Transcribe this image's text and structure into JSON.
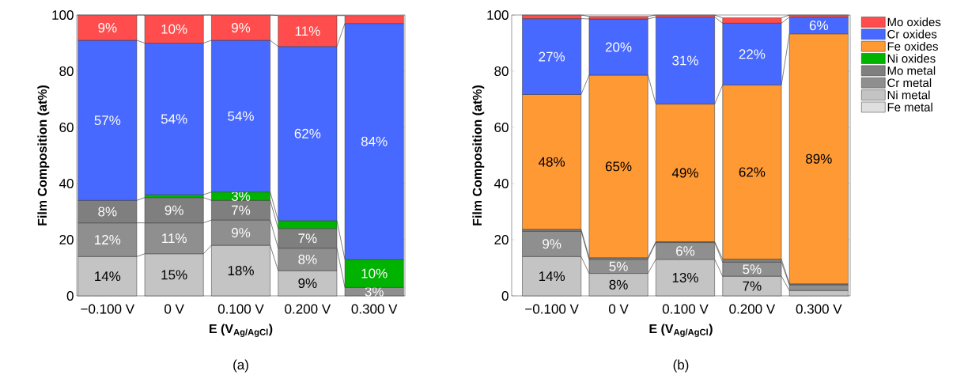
{
  "chart_data": [
    {
      "type": "bar",
      "stacked": true,
      "xlabel": "E (V$_{Ag/AgCl}$)",
      "ylabel": "Film Composition (at%)",
      "categories": [
        "−0.100 V",
        "0 V",
        "0.100 V",
        "0.200 V",
        "0.300 V"
      ],
      "ylim": [
        0,
        100
      ],
      "yticks": [
        0,
        20,
        40,
        60,
        80,
        100
      ],
      "legend": false,
      "annotations": [
        "(a)"
      ],
      "series": [
        {
          "color": "#c4c4c4",
          "values": [
            14,
            15,
            18,
            9,
            null
          ],
          "value_labels": [
            "14%",
            "15%",
            "18%",
            "9%",
            null
          ]
        },
        {
          "color": "#8f8f8f",
          "values": [
            12,
            11,
            9,
            8,
            3
          ],
          "value_labels": [
            "12%",
            "11%",
            "9%",
            "8%",
            "3%"
          ]
        },
        {
          "color": "#7f7f7f",
          "values": [
            8,
            9,
            7,
            7,
            null
          ],
          "value_labels": [
            "8%",
            "9%",
            "7%",
            "7%",
            null
          ]
        },
        {
          "color": "#00b300",
          "values": [
            null,
            1,
            3,
            2.8,
            10
          ],
          "value_labels": [
            null,
            null,
            "3%",
            null,
            "10%"
          ]
        },
        {
          "color": "#4769ff",
          "values": [
            57,
            54,
            54,
            62,
            84
          ],
          "value_labels": [
            "57%",
            "54%",
            "54%",
            "62%",
            "84%"
          ]
        },
        {
          "color": "#ff4d4d",
          "values": [
            9,
            10,
            9,
            11,
            2.8
          ],
          "value_labels": [
            "9%",
            "10%",
            "9%",
            "11%",
            null
          ]
        }
      ]
    },
    {
      "type": "bar",
      "stacked": true,
      "xlabel": "E (V$_{Ag/AgCl}$)",
      "ylabel": "Film Composition (at%)",
      "categories": [
        "−0.100 V",
        "0 V",
        "0.100 V",
        "0.200 V",
        "0.300 V"
      ],
      "ylim": [
        0,
        100
      ],
      "yticks": [
        0,
        20,
        40,
        60,
        80,
        100
      ],
      "legend": "right",
      "annotations": [
        "(b)"
      ],
      "series": [
        {
          "name": "Fe metal",
          "color": "#dfdfdf",
          "values": [
            null,
            null,
            null,
            null,
            null
          ],
          "value_labels": [
            null,
            null,
            null,
            null,
            null
          ]
        },
        {
          "name": "Ni metal",
          "color": "#c4c4c4",
          "values": [
            14,
            8,
            13,
            7,
            1.9
          ],
          "value_labels": [
            "14%",
            "8%",
            "13%",
            "7%",
            null
          ]
        },
        {
          "name": "Cr metal",
          "color": "#8f8f8f",
          "values": [
            9,
            5,
            6,
            5,
            2
          ],
          "value_labels": [
            "9%",
            "5%",
            "6%",
            "5%",
            null
          ]
        },
        {
          "name": "Mo metal",
          "color": "#7f7f7f",
          "values": [
            0.7,
            0.6,
            0.3,
            1.1,
            0.4
          ],
          "value_labels": [
            null,
            null,
            null,
            null,
            null
          ]
        },
        {
          "name": "Ni oxides",
          "color": "#00b300",
          "values": [
            null,
            null,
            null,
            null,
            null
          ],
          "value_labels": [
            null,
            null,
            null,
            null,
            null
          ]
        },
        {
          "name": "Fe oxides",
          "color": "#ff9933",
          "values": [
            48,
            65,
            49,
            62,
            89
          ],
          "value_labels": [
            "48%",
            "65%",
            "49%",
            "62%",
            "89%"
          ]
        },
        {
          "name": "Cr oxides",
          "color": "#4769ff",
          "values": [
            27,
            20,
            31,
            22,
            6
          ],
          "value_labels": [
            "27%",
            "20%",
            "31%",
            "22%",
            "6%"
          ]
        },
        {
          "name": "Mo oxides",
          "color": "#ff4d4d",
          "values": [
            1.3,
            0.9,
            0.7,
            1.9,
            0.7
          ],
          "value_labels": [
            null,
            null,
            null,
            null,
            null
          ]
        }
      ]
    }
  ]
}
